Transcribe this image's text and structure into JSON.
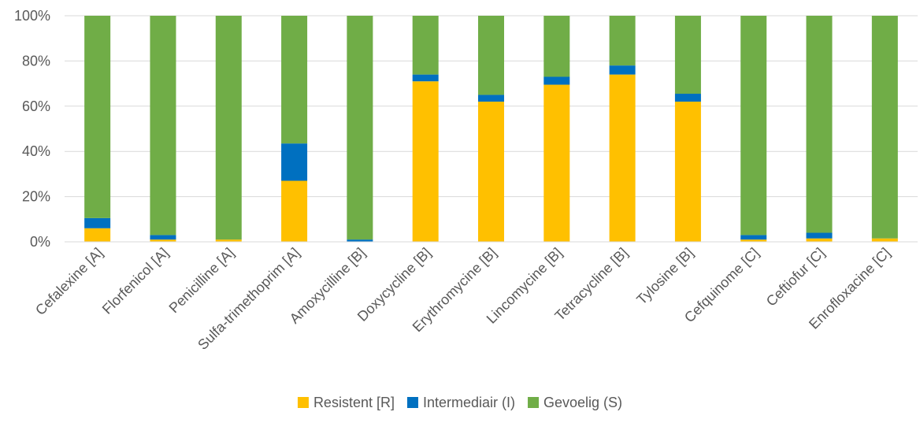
{
  "chart_data": {
    "type": "bar",
    "stacked": true,
    "percent_stacked": true,
    "title": "",
    "xlabel": "",
    "ylabel": "",
    "ylim": [
      0,
      100
    ],
    "y_tick_labels": [
      "0%",
      "20%",
      "40%",
      "60%",
      "80%",
      "100%"
    ],
    "grid": true,
    "legend_position": "bottom",
    "categories": [
      "Cefalexine [A]",
      "Florfenicol [A]",
      "Penicilline [A]",
      "Sulfa-trimethoprim [A]",
      "Amoxycilline  [B]",
      "Doxycycline [B]",
      "Erythromycine [B]",
      "Lincomycine [B]",
      "Tetracycline [B]",
      "Tylosine [B]",
      "Cefquinome [C]",
      "Ceftiofur [C]",
      "Enrofloxacine [C]"
    ],
    "series": [
      {
        "name": "Resistent [R]",
        "color": "#FFC000",
        "values": [
          6,
          1,
          1,
          27,
          0,
          71,
          62,
          69.5,
          74,
          62,
          1,
          1.5,
          1.5
        ]
      },
      {
        "name": "Intermediair (I)",
        "color": "#0070C0",
        "values": [
          4.5,
          2,
          0,
          16.5,
          1,
          3,
          3,
          3.5,
          4,
          3.5,
          2,
          2.5,
          0
        ]
      },
      {
        "name": "Gevoelig (S)",
        "color": "#70AD47",
        "values": [
          89.5,
          97,
          99,
          56.5,
          99,
          26,
          35,
          27,
          22,
          34.5,
          97,
          96,
          98.5
        ]
      }
    ]
  }
}
